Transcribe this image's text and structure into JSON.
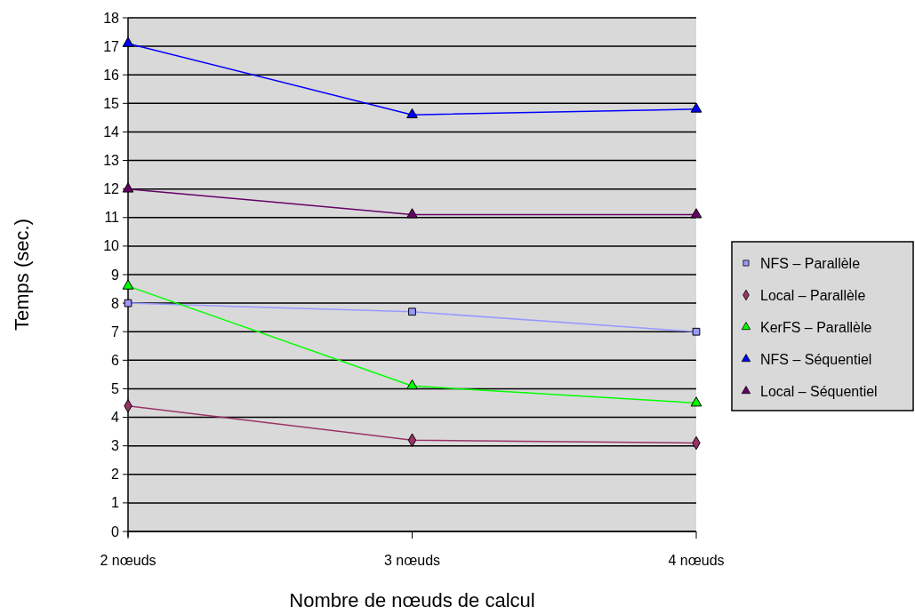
{
  "chart_data": {
    "type": "line",
    "xlabel": "Nombre de nœuds de calcul",
    "ylabel": "Temps (sec.)",
    "categories": [
      "2 nœuds",
      "3 nœuds",
      "4 nœuds"
    ],
    "series": [
      {
        "name": "NFS – Parallèle",
        "color": "#9999ff",
        "marker": "square",
        "values": [
          8.0,
          7.7,
          7.0
        ]
      },
      {
        "name": "Local – Parallèle",
        "color": "#993366",
        "marker": "diamond",
        "values": [
          4.4,
          3.2,
          3.1
        ]
      },
      {
        "name": "KerFS – Parallèle",
        "color": "#00ff00",
        "marker": "triangle",
        "values": [
          8.6,
          5.1,
          4.5
        ]
      },
      {
        "name": "NFS – Séquentiel",
        "color": "#0000ff",
        "marker": "triangle",
        "values": [
          17.1,
          14.6,
          14.8
        ]
      },
      {
        "name": "Local – Séquentiel",
        "color": "#660066",
        "marker": "triangle",
        "values": [
          12.0,
          11.1,
          11.1
        ]
      }
    ],
    "ylim": [
      0,
      18
    ],
    "yticks": [
      0,
      1,
      2,
      3,
      4,
      5,
      6,
      7,
      8,
      9,
      10,
      11,
      12,
      13,
      14,
      15,
      16,
      17,
      18
    ],
    "grid": "y",
    "legend": "right",
    "line_style": "solid"
  }
}
